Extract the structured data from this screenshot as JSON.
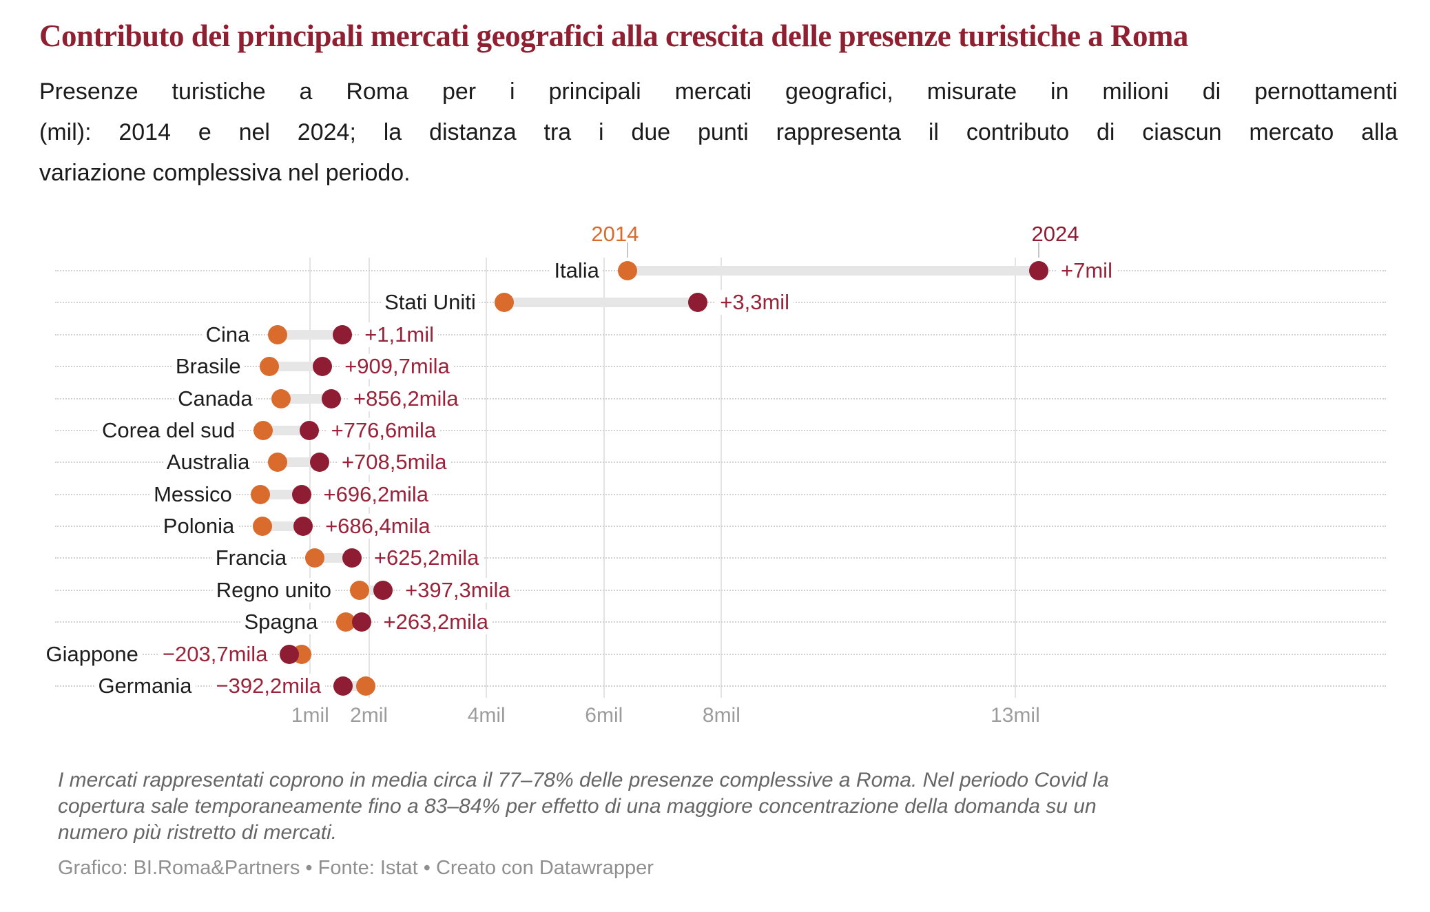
{
  "page": {
    "title": "Contributo dei principali mercati geografici alla crescita delle presenze turistiche a Roma",
    "subtitle_lines": [
      "Presenze turistiche a Roma per i principali mercati geografici, misurate in milioni di pernottamenti",
      "(mil): 2014 e nel 2024; la distanza tra i due punti rappresenta il contributo di ciascun mercato alla",
      "variazione complessiva nel periodo."
    ],
    "footnote_lines": [
      "I mercati rappresentati coprono in media circa il 77–78% delle presenze complessive a Roma. Nel periodo Covid la",
      "copertura sale temporaneamente fino a 83–84% per effetto di una maggiore concentrazione della domanda su un",
      "numero più ristretto di mercati."
    ],
    "credits": "Grafico: BI.Roma&Partners • Fonte: Istat • Creato con Datawrapper"
  },
  "colors": {
    "title": "#8E2032",
    "orange_2014": "#D96B2D",
    "dark_red_2024": "#8E1D33",
    "value_label": "#9B2339",
    "category_label": "#1D1D1D",
    "axis_label": "#9C9C9C",
    "gridline": "#E3E3E3",
    "dotted_line": "#D2D2D2",
    "connector_bar": "#E6E6E6",
    "legend_tick": "#C6C6C6",
    "footnote": "#666666",
    "credits": "#8F8F8F",
    "background": "#FFFFFF"
  },
  "chart_data": {
    "type": "scatter",
    "variant": "dumbbell-range",
    "unit": "milioni di pernottamenti (mil)",
    "categories": [
      "Italia",
      "Stati Uniti",
      "Cina",
      "Brasile",
      "Canada",
      "Corea del sud",
      "Australia",
      "Messico",
      "Polonia",
      "Francia",
      "Regno unito",
      "Spagna",
      "Giappone",
      "Germania"
    ],
    "series": [
      {
        "name": "2014",
        "color": "#D96B2D",
        "values": [
          6.4,
          4.3,
          0.45,
          0.3,
          0.5,
          0.2,
          0.45,
          0.15,
          0.19,
          1.08,
          1.84,
          1.61,
          0.85,
          1.95
        ]
      },
      {
        "name": "2024",
        "color": "#8E1D33",
        "values": [
          13.4,
          7.6,
          1.55,
          1.21,
          1.36,
          0.98,
          1.16,
          0.85,
          0.88,
          1.71,
          2.24,
          1.87,
          0.65,
          1.56
        ]
      }
    ],
    "change_labels": [
      "+7mil",
      "+3,3mil",
      "+1,1mil",
      "+909,7mila",
      "+856,2mila",
      "+776,6mila",
      "+708,5mila",
      "+696,2mila",
      "+686,4mila",
      "+625,2mila",
      "+397,3mila",
      "+263,2mila",
      "−203,7mila",
      "−392,2mila"
    ],
    "x_ticks": [
      {
        "value": 1,
        "label": "1mil"
      },
      {
        "value": 2,
        "label": "2mil"
      },
      {
        "value": 4,
        "label": "4mil"
      },
      {
        "value": 6,
        "label": "6mil"
      },
      {
        "value": 8,
        "label": "8mil"
      },
      {
        "value": 13,
        "label": "13mil"
      }
    ],
    "xlim": [
      0,
      19.3
    ],
    "grid": "vertical-solid-lines-plus-dotted-row-leaders",
    "legend_position": "above-first-row"
  }
}
